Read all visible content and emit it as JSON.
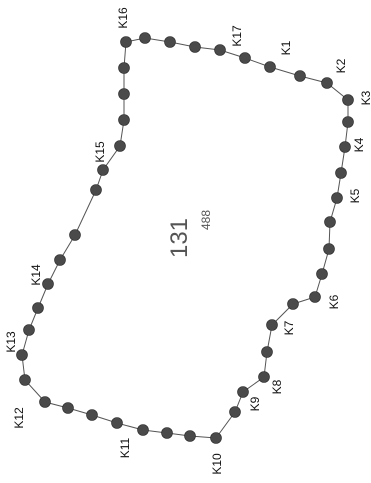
{
  "parcel": {
    "number": "131",
    "area": "488"
  },
  "vertices": [
    {
      "id": "K1",
      "label": "K1"
    },
    {
      "id": "K2",
      "label": "K2"
    },
    {
      "id": "K3",
      "label": "K3"
    },
    {
      "id": "K4",
      "label": "K4"
    },
    {
      "id": "K5",
      "label": "K5"
    },
    {
      "id": "K6",
      "label": "K6"
    },
    {
      "id": "K7",
      "label": "K7"
    },
    {
      "id": "K8",
      "label": "K8"
    },
    {
      "id": "K9",
      "label": "K9"
    },
    {
      "id": "K10",
      "label": "K10"
    },
    {
      "id": "K11",
      "label": "K11"
    },
    {
      "id": "K12",
      "label": "K12"
    },
    {
      "id": "K13",
      "label": "K13"
    },
    {
      "id": "K14",
      "label": "K14"
    },
    {
      "id": "K15",
      "label": "K15"
    },
    {
      "id": "K16",
      "label": "K16"
    },
    {
      "id": "K17",
      "label": "K17"
    }
  ],
  "colors": {
    "dot": "#4a4a4a",
    "boundary": "#555555",
    "text": "#111111"
  }
}
